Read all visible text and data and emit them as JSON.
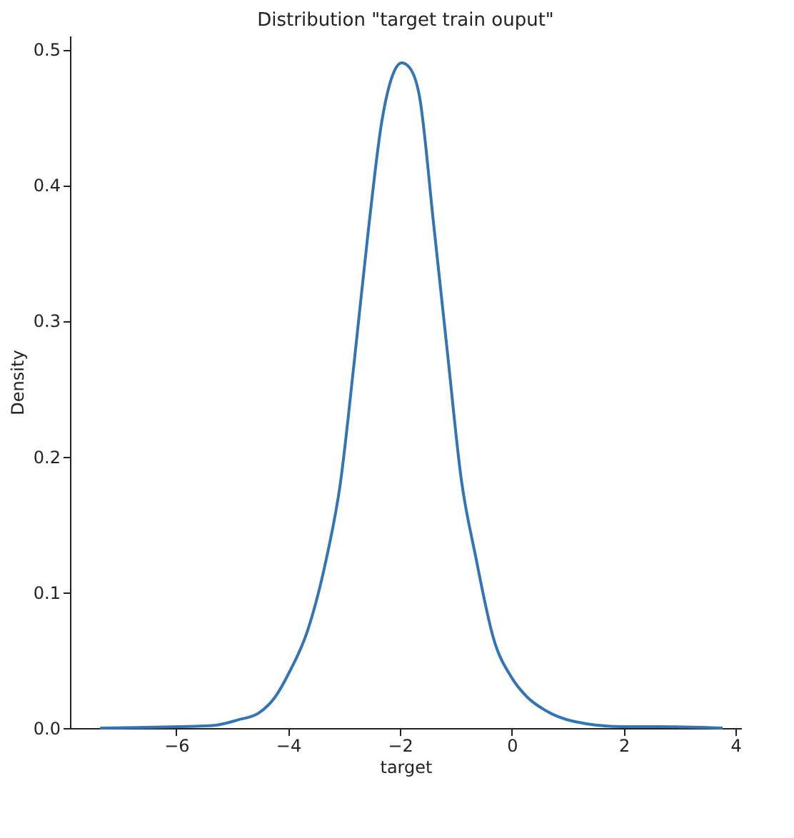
{
  "chart_data": {
    "type": "line",
    "title": "Distribution \"target train ouput\"",
    "xlabel": "target",
    "ylabel": "Density",
    "xlim": [
      -7.9,
      4.1
    ],
    "ylim": [
      0,
      0.51
    ],
    "xticks": [
      {
        "value": -6,
        "label": "−6"
      },
      {
        "value": -4,
        "label": "−4"
      },
      {
        "value": -2,
        "label": "−2"
      },
      0,
      2,
      4
    ],
    "yticks": [
      {
        "value": 0,
        "label": "0.0"
      },
      0.1,
      0.2,
      0.3,
      0.4,
      0.5
    ],
    "grid": false,
    "series": [
      {
        "color": "#3274b5",
        "x": [
          -7.36,
          -5.98,
          -5.32,
          -4.9,
          -4.53,
          -4.23,
          -3.98,
          -3.65,
          -3.32,
          -3.07,
          -2.82,
          -2.57,
          -2.32,
          -2.1,
          -1.97,
          -1.82,
          -1.65,
          -1.4,
          -1.15,
          -0.9,
          -0.65,
          -0.32,
          0,
          0.27,
          0.6,
          1.1,
          1.98,
          2.6,
          3.77
        ],
        "values": [
          0,
          0.001,
          0.002,
          0.006,
          0.011,
          0.023,
          0.041,
          0.072,
          0.124,
          0.179,
          0.269,
          0.365,
          0.448,
          0.484,
          0.49,
          0.486,
          0.465,
          0.372,
          0.276,
          0.182,
          0.127,
          0.065,
          0.037,
          0.023,
          0.013,
          0.005,
          0.001,
          0.001,
          0
        ]
      }
    ]
  }
}
